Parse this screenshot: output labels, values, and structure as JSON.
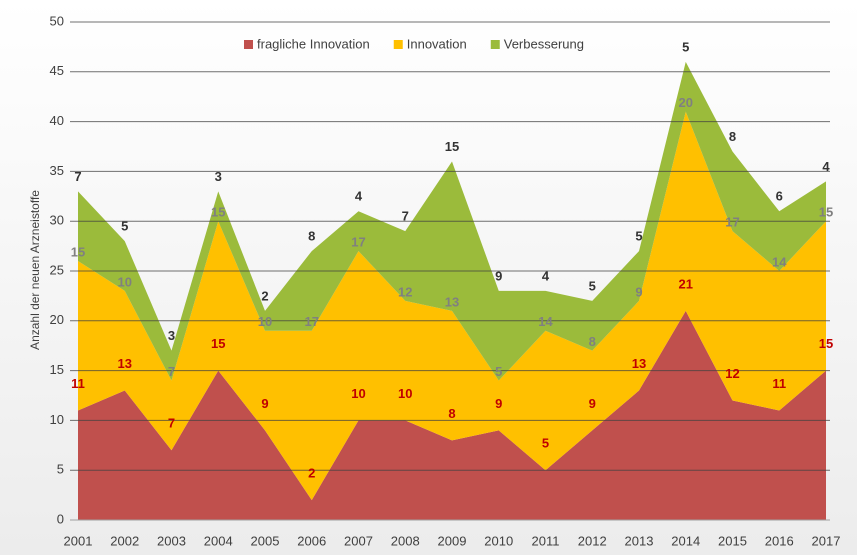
{
  "chart_data": {
    "type": "stacked-area",
    "y_label": "Anzahl der neuen Arzneistoffe",
    "categories": [
      "2001",
      "2002",
      "2003",
      "2004",
      "2005",
      "2006",
      "2007",
      "2008",
      "2009",
      "2010",
      "2011",
      "2012",
      "2013",
      "2014",
      "2015",
      "2016",
      "2017"
    ],
    "series": [
      {
        "name": "fragliche Innovation",
        "color": "#c0504d",
        "label_color": "#c00000",
        "values": [
          11,
          13,
          7,
          15,
          9,
          2,
          10,
          10,
          8,
          9,
          5,
          9,
          13,
          21,
          12,
          11,
          15
        ]
      },
      {
        "name": "Innovation",
        "color": "#ffc000",
        "label_color": "#808080",
        "values": [
          15,
          10,
          7,
          15,
          10,
          17,
          17,
          12,
          13,
          5,
          14,
          8,
          9,
          20,
          17,
          14,
          15
        ]
      },
      {
        "name": "Verbesserung",
        "color": "#9bbb3b",
        "label_color": "#333333",
        "values": [
          7,
          5,
          3,
          3,
          2,
          8,
          4,
          7,
          15,
          9,
          4,
          5,
          5,
          5,
          8,
          6,
          4
        ]
      }
    ],
    "ylim": [
      0,
      50
    ],
    "yticks": [
      0,
      5,
      10,
      15,
      20,
      25,
      30,
      35,
      40,
      45,
      50
    ],
    "grid": true,
    "legend": "top"
  }
}
